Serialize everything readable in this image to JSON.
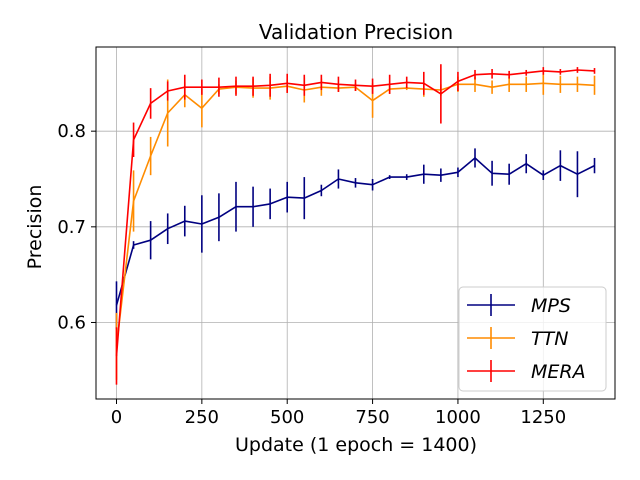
{
  "chart_data": {
    "type": "line",
    "title": "Validation Precision",
    "xlabel": "Update (1 epoch = 1400)",
    "ylabel": "Precision",
    "xlim": [
      -60,
      1460
    ],
    "ylim": [
      0.52,
      0.888
    ],
    "xticks": [
      0,
      250,
      500,
      750,
      1000,
      1250
    ],
    "yticks": [
      0.6,
      0.7,
      0.8
    ],
    "ytick_labels": [
      "0.6",
      "0.7",
      "0.8"
    ],
    "grid": true,
    "legend_position": "bottom-right",
    "x": [
      0,
      50,
      100,
      150,
      200,
      250,
      300,
      350,
      400,
      450,
      500,
      550,
      600,
      650,
      700,
      750,
      800,
      850,
      900,
      950,
      1000,
      1050,
      1100,
      1150,
      1200,
      1250,
      1300,
      1350,
      1400
    ],
    "series": [
      {
        "name": "MPS",
        "color": "#000080",
        "values": [
          0.618,
          0.681,
          0.686,
          0.698,
          0.706,
          0.703,
          0.71,
          0.721,
          0.721,
          0.724,
          0.731,
          0.73,
          0.738,
          0.75,
          0.746,
          0.744,
          0.752,
          0.752,
          0.755,
          0.754,
          0.757,
          0.772,
          0.756,
          0.755,
          0.766,
          0.754,
          0.764,
          0.755,
          0.764
        ],
        "errors": [
          0.025,
          0.004,
          0.02,
          0.016,
          0.016,
          0.03,
          0.025,
          0.026,
          0.021,
          0.016,
          0.016,
          0.022,
          0.006,
          0.01,
          0.005,
          0.006,
          0.002,
          0.003,
          0.01,
          0.007,
          0.005,
          0.01,
          0.013,
          0.011,
          0.01,
          0.005,
          0.016,
          0.024,
          0.008
        ]
      },
      {
        "name": "TTN",
        "color": "#FF8C00",
        "values": [
          0.575,
          0.727,
          0.774,
          0.819,
          0.838,
          0.824,
          0.844,
          0.846,
          0.845,
          0.845,
          0.847,
          0.843,
          0.846,
          0.845,
          0.846,
          0.832,
          0.844,
          0.845,
          0.844,
          0.843,
          0.849,
          0.849,
          0.846,
          0.849,
          0.849,
          0.85,
          0.849,
          0.849,
          0.848
        ],
        "errors": [
          0.035,
          0.032,
          0.02,
          0.035,
          0.013,
          0.02,
          0.005,
          0.007,
          0.01,
          0.012,
          0.007,
          0.013,
          0.009,
          0.004,
          0.004,
          0.018,
          0.005,
          0.002,
          0.008,
          0.006,
          0.008,
          0.008,
          0.007,
          0.008,
          0.008,
          0.012,
          0.009,
          0.008,
          0.01
        ]
      },
      {
        "name": "MERA",
        "color": "#FF0000",
        "values": [
          0.565,
          0.791,
          0.829,
          0.842,
          0.846,
          0.846,
          0.846,
          0.847,
          0.847,
          0.848,
          0.85,
          0.848,
          0.851,
          0.849,
          0.848,
          0.847,
          0.849,
          0.851,
          0.85,
          0.839,
          0.852,
          0.859,
          0.86,
          0.859,
          0.861,
          0.863,
          0.862,
          0.864,
          0.863
        ],
        "errors": [
          0.03,
          0.018,
          0.016,
          0.01,
          0.013,
          0.008,
          0.01,
          0.01,
          0.01,
          0.012,
          0.01,
          0.011,
          0.008,
          0.008,
          0.006,
          0.008,
          0.01,
          0.006,
          0.012,
          0.031,
          0.01,
          0.005,
          0.005,
          0.004,
          0.003,
          0.004,
          0.003,
          0.003,
          0.003
        ]
      }
    ]
  }
}
